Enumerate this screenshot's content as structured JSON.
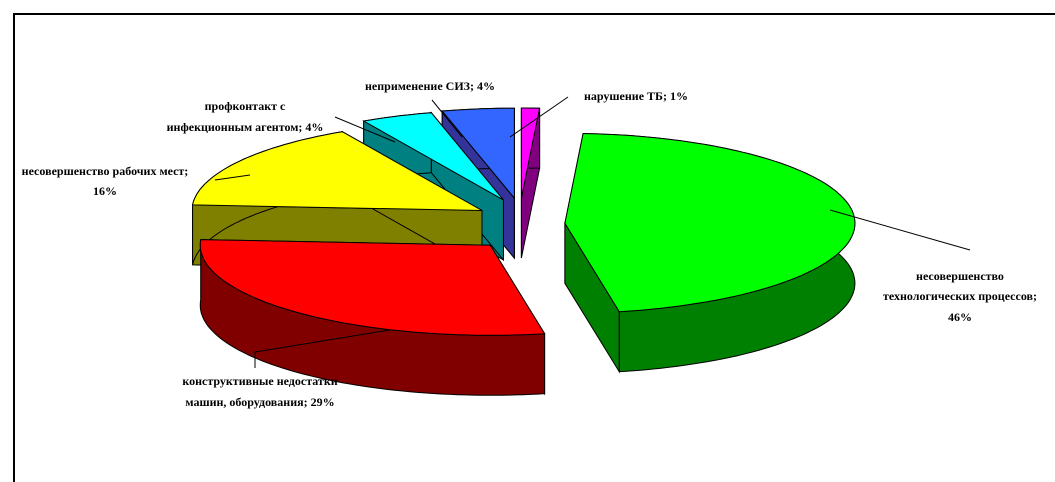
{
  "chart_data": {
    "type": "pie3d",
    "values": [
      1,
      46,
      29,
      16,
      4,
      4
    ],
    "value_labels": [
      [
        "нарушение ТБ; 1%"
      ],
      [
        "несовершенство",
        "технологических процессов;",
        "46%"
      ],
      [
        "конструктивные недостатки",
        "машин, оборудования; 29%"
      ],
      [
        "несовершенство рабочих мест;",
        "16%"
      ],
      [
        "профконтакт с",
        "инфекционным агентом; 4%"
      ],
      [
        "неприменение СИЗ; 4%"
      ]
    ],
    "colors": [
      "#ff00ff",
      "#00ff00",
      "#ff0000",
      "#ffff00",
      "#00ffff",
      "#3366ff"
    ],
    "side_colors": [
      "#800080",
      "#008000",
      "#800000",
      "#808000",
      "#008080",
      "#333399"
    ]
  }
}
